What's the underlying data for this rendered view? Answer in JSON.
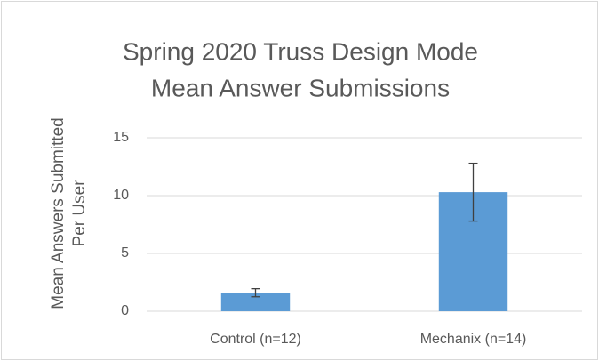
{
  "chart_data": {
    "type": "bar",
    "title": [
      "Spring 2020 Truss Design Mode",
      "Mean Answer Submissions"
    ],
    "y_label": [
      "Mean Answers Submitted",
      "Per User"
    ],
    "categories": [
      "Control (n=12)",
      "Mechanix (n=14)"
    ],
    "values": [
      1.6,
      10.3
    ],
    "errors": [
      0.35,
      2.5
    ],
    "color": "#5b9bd5",
    "ylim": [
      0,
      15
    ],
    "yticks": [
      0,
      5,
      10,
      15
    ],
    "grid": true
  }
}
